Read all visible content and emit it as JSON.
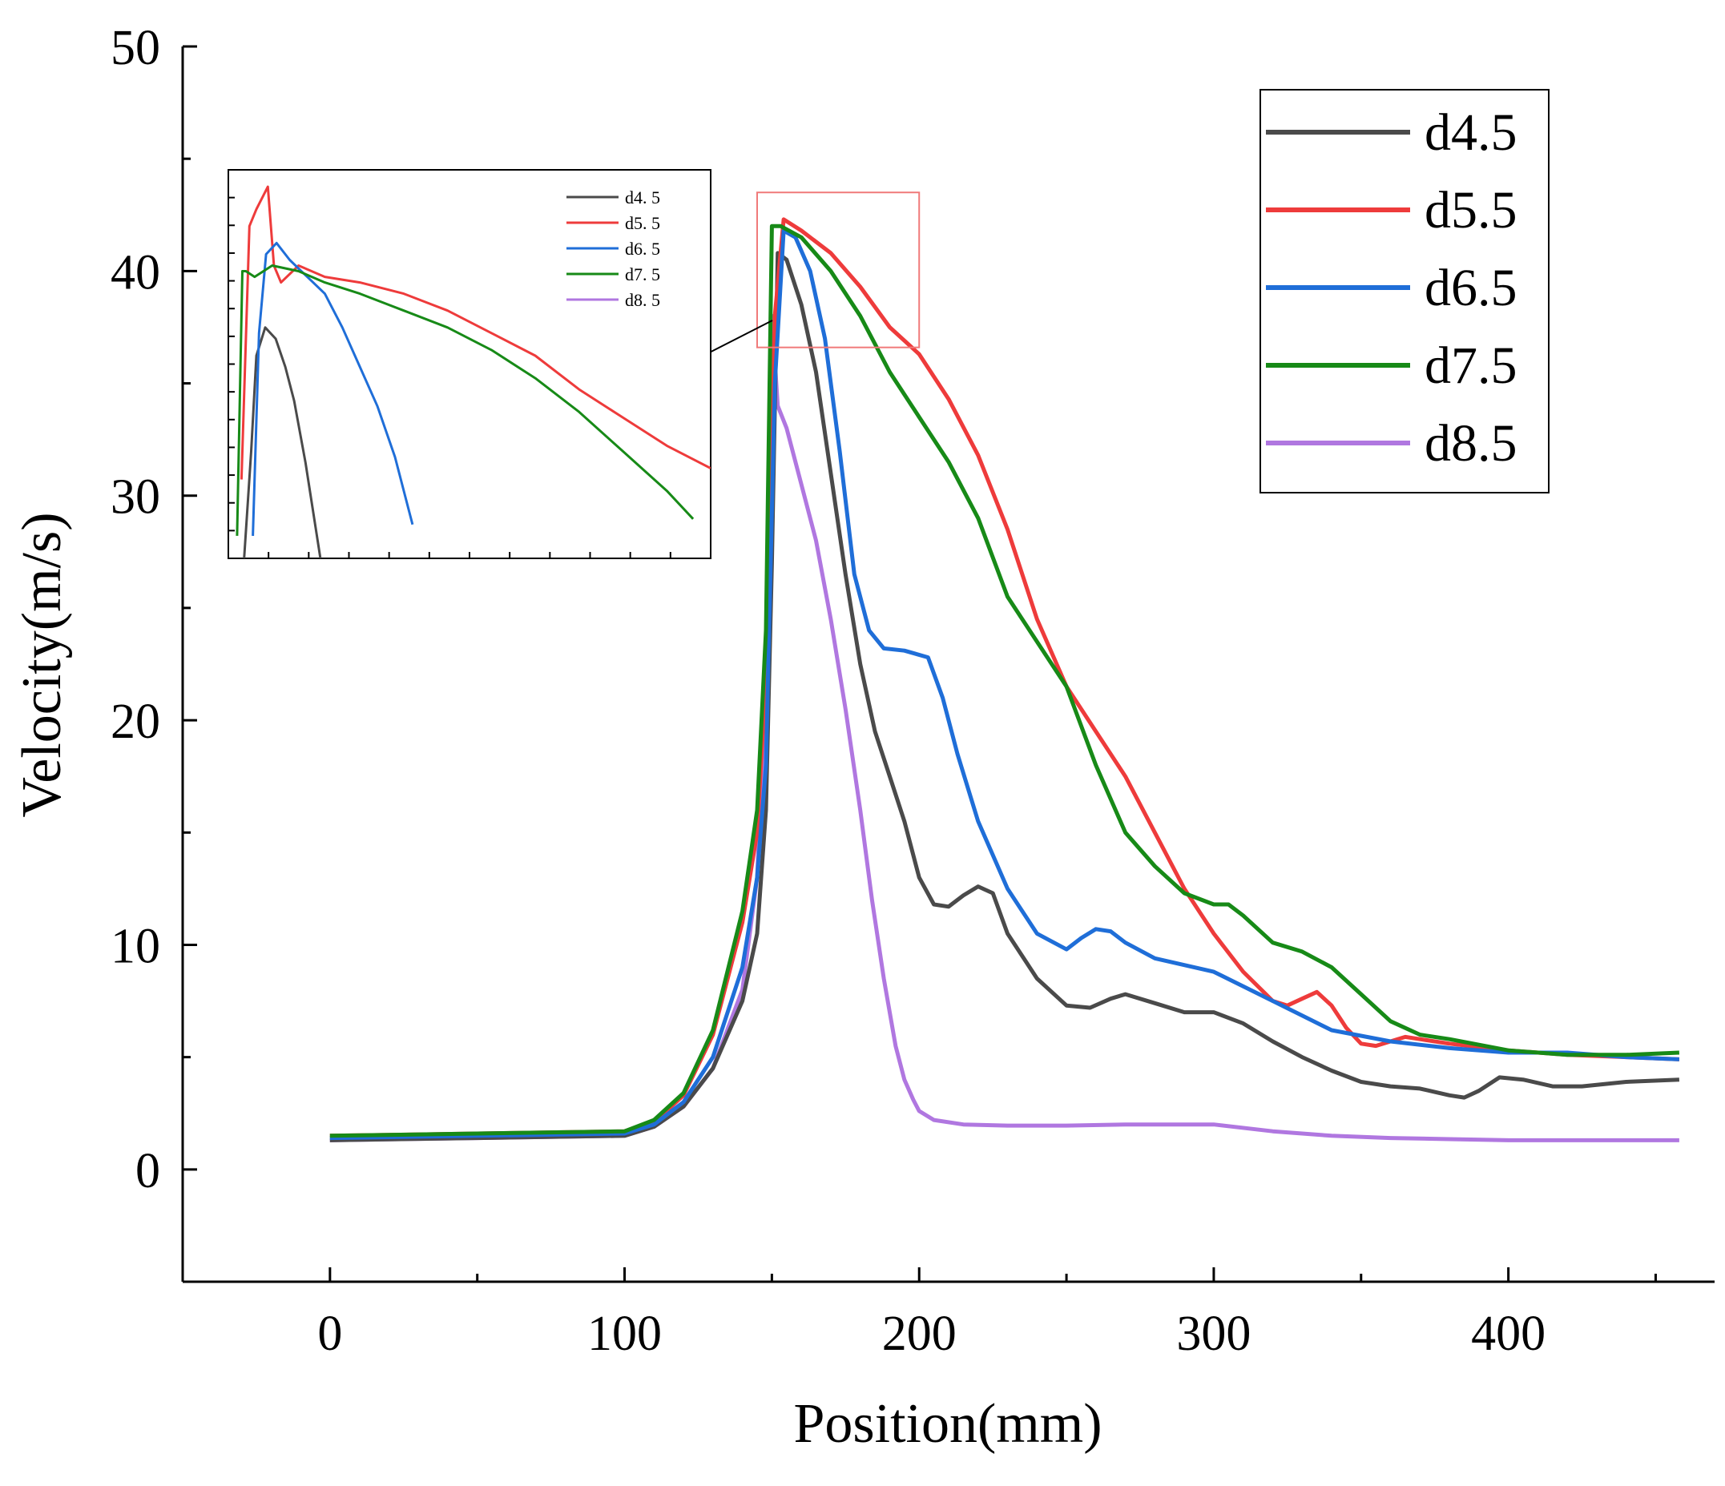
{
  "chart_data": {
    "type": "line",
    "xlabel": "Position(mm)",
    "ylabel": "Velocity(m/s)",
    "xlim": [
      -50,
      470
    ],
    "ylim": [
      -5,
      50
    ],
    "xticks": [
      0,
      100,
      200,
      300,
      400
    ],
    "yticks": [
      0,
      10,
      20,
      30,
      40,
      50
    ],
    "xtick_labels": [
      "0",
      "100",
      "200",
      "300",
      "400"
    ],
    "ytick_labels": [
      "0",
      "10",
      "20",
      "30",
      "40",
      "50"
    ],
    "legend_position": "top-right",
    "series": [
      {
        "name": "d4.5",
        "color": "#4a4a4a",
        "x": [
          0,
          50,
          100,
          110,
          120,
          130,
          140,
          145,
          148,
          150,
          152,
          155,
          160,
          165,
          170,
          175,
          180,
          185,
          190,
          195,
          200,
          205,
          210,
          215,
          220,
          225,
          230,
          240,
          250,
          258,
          265,
          270,
          280,
          290,
          300,
          310,
          320,
          330,
          340,
          350,
          360,
          370,
          380,
          385,
          390,
          397,
          405,
          415,
          425,
          440,
          458
        ],
        "y": [
          1.3,
          1.4,
          1.5,
          1.9,
          2.8,
          4.5,
          7.5,
          10.5,
          16,
          27,
          40.8,
          40.5,
          38.5,
          35.5,
          31,
          26.5,
          22.5,
          19.5,
          17.5,
          15.5,
          13,
          11.8,
          11.7,
          12.2,
          12.6,
          12.3,
          10.5,
          8.5,
          7.3,
          7.2,
          7.6,
          7.8,
          7.4,
          7.0,
          7.0,
          6.5,
          5.7,
          5.0,
          4.4,
          3.9,
          3.7,
          3.6,
          3.3,
          3.2,
          3.5,
          4.1,
          4.0,
          3.7,
          3.7,
          3.9,
          4.0
        ]
      },
      {
        "name": "d5.5",
        "color": "#ee3b3b",
        "x": [
          0,
          50,
          100,
          110,
          120,
          130,
          140,
          145,
          148,
          151,
          154,
          160,
          170,
          180,
          190,
          200,
          210,
          220,
          230,
          240,
          250,
          260,
          270,
          280,
          290,
          300,
          310,
          320,
          325,
          330,
          335,
          340,
          345,
          350,
          355,
          360,
          365,
          370,
          380,
          400,
          420,
          440,
          458
        ],
        "y": [
          1.5,
          1.6,
          1.7,
          2.1,
          3.3,
          6,
          11,
          15,
          22,
          38,
          42.3,
          41.8,
          40.8,
          39.3,
          37.5,
          36.3,
          34.3,
          31.8,
          28.5,
          24.5,
          21.5,
          19.5,
          17.5,
          15,
          12.5,
          10.5,
          8.8,
          7.5,
          7.3,
          7.6,
          7.9,
          7.3,
          6.3,
          5.6,
          5.5,
          5.7,
          5.9,
          5.8,
          5.6,
          5.3,
          5.1,
          5.0,
          4.9
        ]
      },
      {
        "name": "d6.5",
        "color": "#1f6ed8",
        "x": [
          0,
          50,
          100,
          110,
          120,
          130,
          140,
          145,
          148,
          151,
          154,
          158,
          163,
          168,
          173,
          178,
          183,
          188,
          195,
          203,
          208,
          213,
          220,
          230,
          240,
          250,
          255,
          260,
          265,
          270,
          280,
          300,
          320,
          340,
          360,
          380,
          400,
          420,
          440,
          458
        ],
        "y": [
          1.4,
          1.5,
          1.6,
          2.0,
          3.0,
          5,
          9,
          13,
          18,
          35,
          41.8,
          41.5,
          40,
          37,
          32,
          26.5,
          24,
          23.2,
          23.1,
          22.8,
          21,
          18.5,
          15.5,
          12.5,
          10.5,
          9.8,
          10.3,
          10.7,
          10.6,
          10.1,
          9.4,
          8.8,
          7.5,
          6.2,
          5.7,
          5.4,
          5.2,
          5.2,
          5.0,
          4.9
        ]
      },
      {
        "name": "d7.5",
        "color": "#178a17",
        "x": [
          0,
          50,
          100,
          110,
          120,
          130,
          140,
          145,
          148,
          150,
          153,
          160,
          170,
          180,
          190,
          200,
          210,
          220,
          230,
          240,
          250,
          260,
          270,
          280,
          290,
          300,
          305,
          310,
          320,
          330,
          340,
          350,
          360,
          370,
          380,
          400,
          420,
          440,
          458
        ],
        "y": [
          1.5,
          1.6,
          1.7,
          2.2,
          3.4,
          6.2,
          11.5,
          16,
          24,
          42,
          42,
          41.5,
          40,
          38,
          35.5,
          33.5,
          31.5,
          29,
          25.5,
          23.5,
          21.5,
          18,
          15,
          13.5,
          12.3,
          11.8,
          11.8,
          11.3,
          10.1,
          9.7,
          9.0,
          7.8,
          6.6,
          6.0,
          5.8,
          5.3,
          5.1,
          5.1,
          5.2
        ]
      },
      {
        "name": "d8.5",
        "color": "#b077e0",
        "x": [
          0,
          50,
          100,
          110,
          120,
          130,
          140,
          145,
          148,
          150,
          152,
          155,
          160,
          165,
          170,
          175,
          180,
          184,
          188,
          192,
          195,
          198,
          200,
          205,
          215,
          230,
          250,
          270,
          300,
          320,
          340,
          360,
          380,
          400,
          430,
          458
        ],
        "y": [
          1.3,
          1.4,
          1.5,
          1.9,
          2.8,
          4.5,
          8,
          13,
          22,
          38,
          34,
          33,
          30.5,
          28,
          24.5,
          20.5,
          16,
          12,
          8.5,
          5.5,
          4,
          3.1,
          2.6,
          2.2,
          2.0,
          1.95,
          1.95,
          2.0,
          2.0,
          1.7,
          1.5,
          1.4,
          1.35,
          1.3,
          1.3,
          1.3
        ]
      }
    ],
    "zoom_region": {
      "xlim": [
        145,
        200
      ],
      "ylim": [
        36.6,
        43.5
      ]
    },
    "inset": {
      "xlim": [
        145,
        200
      ],
      "ylim": [
        36.6,
        43.5
      ],
      "legend_labels": [
        "d4. 5",
        "d5. 5",
        "d6. 5",
        "d7. 5",
        "d8. 5"
      ],
      "legend_position": "top-right",
      "series": [
        {
          "name": "d4.5",
          "x": [
            146.8,
            147.6,
            148.2,
            149.2,
            150.4,
            151.5,
            152.5,
            153.8,
            155.5
          ],
          "y": [
            36.6,
            38.5,
            40.2,
            40.7,
            40.5,
            40.0,
            39.4,
            38.3,
            36.6
          ]
        },
        {
          "name": "d5.5",
          "x": [
            146.5,
            147.4,
            148.2,
            149.5,
            150.2,
            151,
            153,
            156,
            160,
            165,
            170,
            175,
            180,
            185,
            190,
            195,
            200
          ],
          "y": [
            38,
            42.5,
            42.8,
            43.2,
            41.8,
            41.5,
            41.8,
            41.6,
            41.5,
            41.3,
            41.0,
            40.6,
            40.2,
            39.6,
            39.1,
            38.6,
            38.2
          ]
        },
        {
          "name": "d6.5",
          "x": [
            147.8,
            148.5,
            149.3,
            150.5,
            152,
            154,
            156,
            158,
            160,
            162,
            164,
            166
          ],
          "y": [
            37,
            40.6,
            42.0,
            42.2,
            41.9,
            41.6,
            41.3,
            40.7,
            40.0,
            39.3,
            38.4,
            37.2
          ]
        },
        {
          "name": "d7.5",
          "x": [
            146.0,
            146.6,
            147.0,
            148,
            150,
            153,
            156,
            160,
            165,
            170,
            175,
            180,
            185,
            190,
            195,
            198
          ],
          "y": [
            37,
            41.7,
            41.7,
            41.6,
            41.8,
            41.7,
            41.5,
            41.3,
            41.0,
            40.7,
            40.3,
            39.8,
            39.2,
            38.5,
            37.8,
            37.3
          ]
        },
        {
          "name": "d8.5",
          "x": [],
          "y": []
        }
      ]
    }
  }
}
